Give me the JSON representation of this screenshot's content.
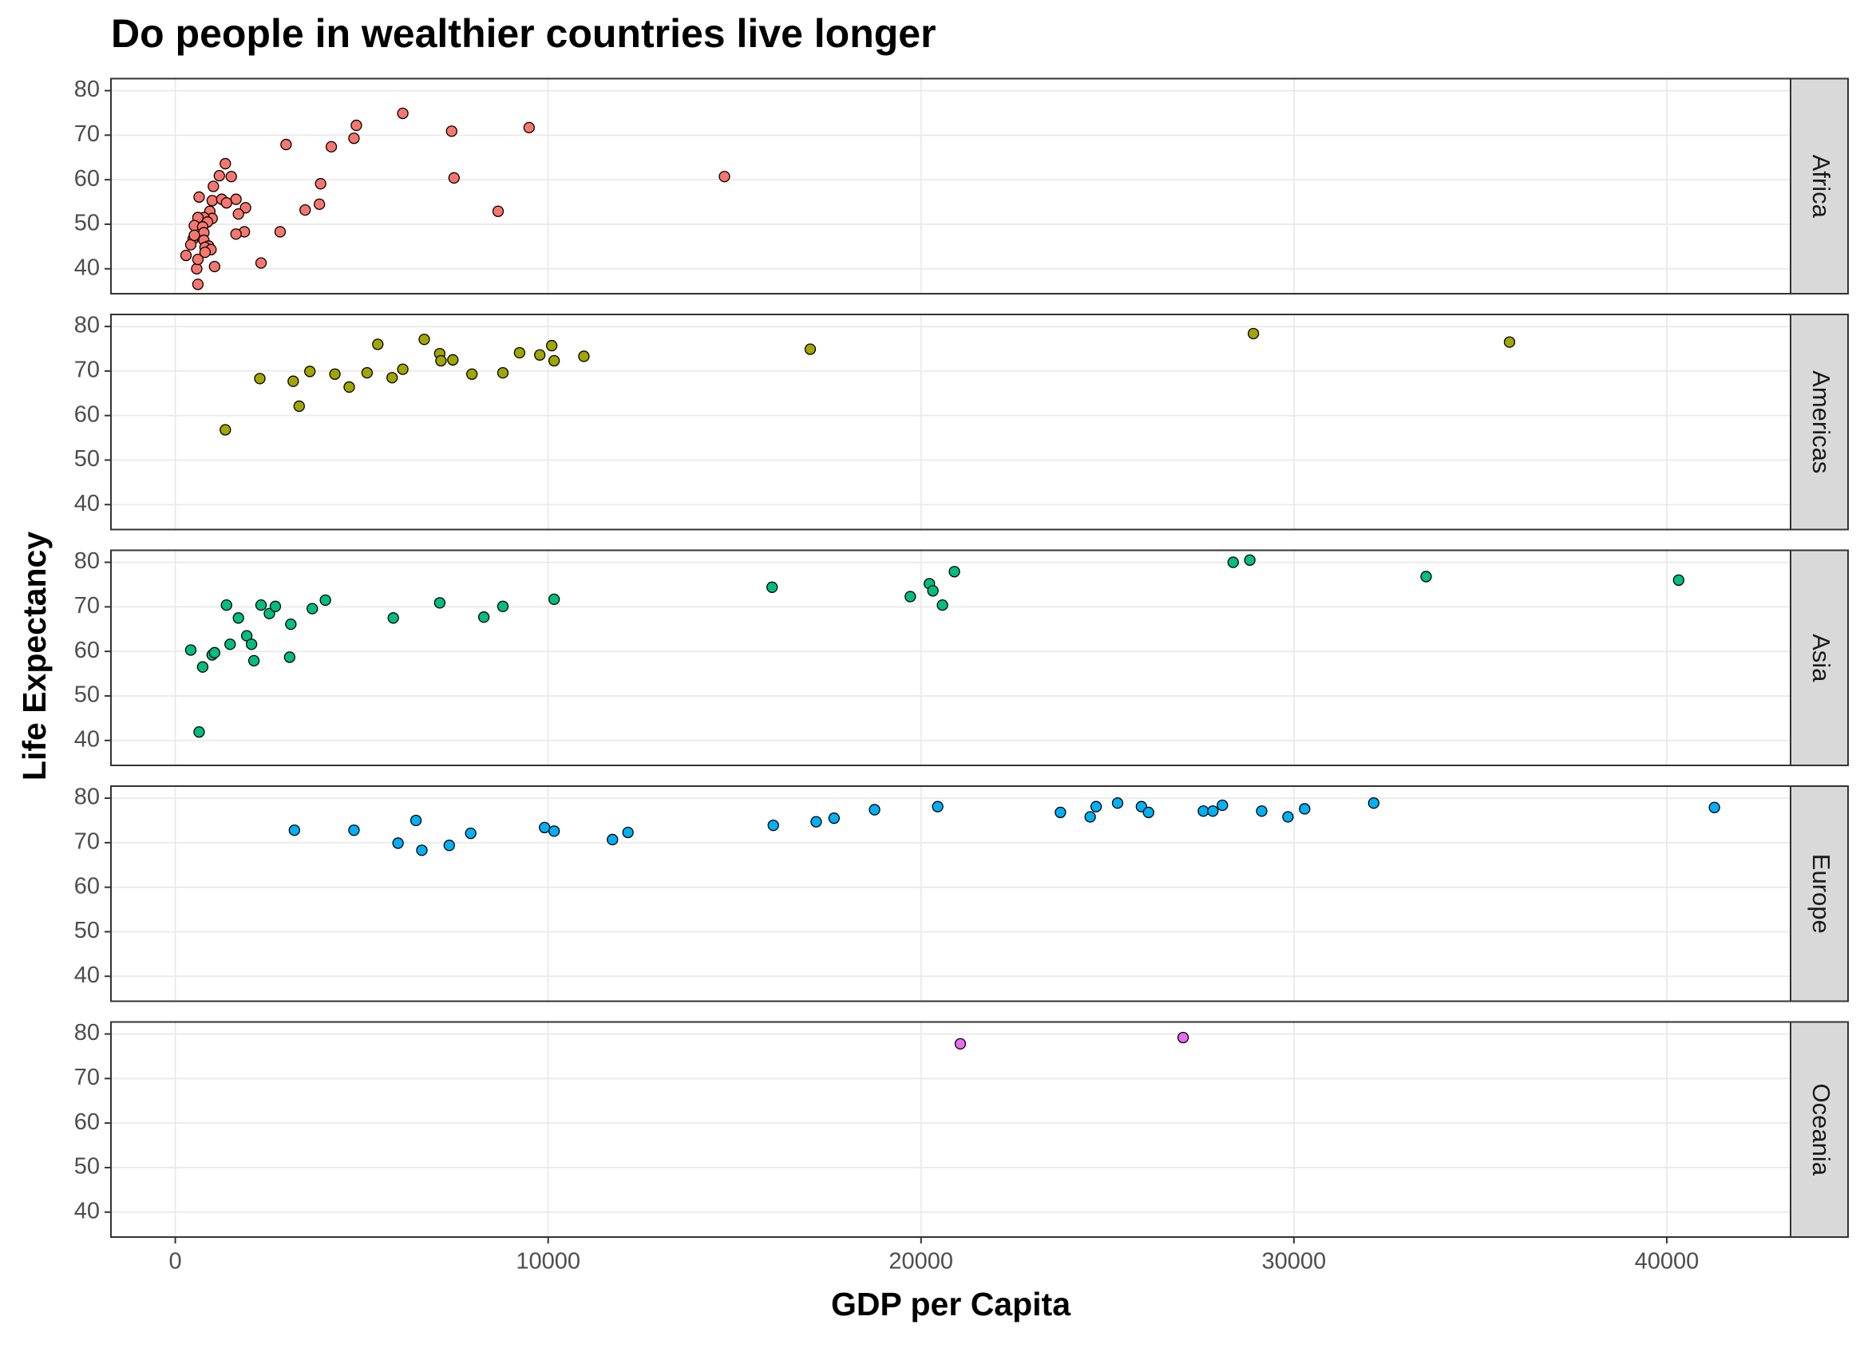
{
  "chart_data": {
    "type": "scatter",
    "title": "Do people in wealthier countries live longer",
    "xlabel": "GDP per Capita",
    "ylabel": "Life Expectancy",
    "xlim": [
      -1725,
      43320
    ],
    "xticks": [
      0,
      10000,
      20000,
      30000,
      40000
    ],
    "ylim": [
      34.4,
      82.7
    ],
    "yticks": [
      40,
      50,
      60,
      70,
      80
    ],
    "grid": true,
    "series": [
      {
        "name": "Africa",
        "color": "#F8766D",
        "x": [
          6102,
          4856,
          4792,
          9489,
          7412,
          2971,
          4185,
          7476,
          14728,
          3898,
          3866,
          3482,
          8658,
          2812,
          2300,
          1342,
          1182,
          1502,
          1022,
          990,
          1246,
          1629,
          639,
          1374,
          1885,
          1693,
          927,
          990,
          767,
          607,
          863,
          511,
          735,
          1853,
          1629,
          767,
          479,
          767,
          895,
          415,
          799,
          958,
          288,
          1054,
          575,
          607,
          607,
          799,
          511
        ],
        "values": [
          74.9,
          72.2,
          69.3,
          71.7,
          70.9,
          67.9,
          67.4,
          60.4,
          60.7,
          59.1,
          54.5,
          53.2,
          52.9,
          48.3,
          41.3,
          63.6,
          60.9,
          60.7,
          58.5,
          55.3,
          55.6,
          55.6,
          56.1,
          54.8,
          53.7,
          52.3,
          52.9,
          51.3,
          51.5,
          51.5,
          50.5,
          49.7,
          49.4,
          48.3,
          47.8,
          48.1,
          46.7,
          46.4,
          45.1,
          45.4,
          44.8,
          44.3,
          43.0,
          40.5,
          40.0,
          36.5,
          42.1,
          43.7,
          47.5
        ]
      },
      {
        "name": "Americas",
        "color": "#A3A500",
        "x": [
          1342,
          2268,
          3163,
          3323,
          3610,
          4281,
          4665,
          5144,
          5431,
          5815,
          6102,
          6677,
          7093,
          7125,
          7444,
          7955,
          8786,
          9233,
          9776,
          10096,
          10160,
          10958,
          17029,
          28914,
          35783
        ],
        "values": [
          56.8,
          68.3,
          67.7,
          62.1,
          69.9,
          69.3,
          66.4,
          69.6,
          76.0,
          68.5,
          70.4,
          77.1,
          73.9,
          72.3,
          72.5,
          69.3,
          69.6,
          74.1,
          73.6,
          75.7,
          72.3,
          73.3,
          74.9,
          78.4,
          76.5
        ]
      },
      {
        "name": "Asia",
        "color": "#00BF7D",
        "x": [
          415,
          735,
          990,
          1054,
          639,
          1374,
          1470,
          1693,
          1917,
          2045,
          2109,
          2300,
          2524,
          2684,
          3099,
          3067,
          3674,
          4026,
          5847,
          7093,
          8275,
          8786,
          10160,
          16006,
          19712,
          20224,
          20319,
          20575,
          20895,
          28371,
          28818,
          33546,
          40319
        ],
        "values": [
          60.3,
          56.5,
          59.2,
          59.7,
          41.9,
          70.4,
          61.6,
          67.5,
          63.5,
          61.6,
          57.9,
          70.4,
          68.5,
          70.1,
          66.1,
          58.7,
          69.6,
          71.5,
          67.5,
          70.9,
          67.7,
          70.1,
          71.7,
          74.4,
          72.3,
          75.2,
          73.6,
          70.4,
          77.9,
          80.0,
          80.5,
          76.8,
          76.0
        ]
      },
      {
        "name": "Europe",
        "color": "#00B0F6",
        "x": [
          3195,
          4792,
          5974,
          6454,
          6613,
          7348,
          7923,
          9904,
          10160,
          11725,
          12141,
          16038,
          17188,
          17668,
          18754,
          20447,
          23738,
          24537,
          24696,
          25272,
          25911,
          26102,
          27572,
          27827,
          28083,
          29137,
          29840,
          30288,
          32141,
          41278
        ],
        "values": [
          72.8,
          72.8,
          69.9,
          75.0,
          68.3,
          69.4,
          72.1,
          73.4,
          72.6,
          70.7,
          72.3,
          73.9,
          74.7,
          75.5,
          77.4,
          78.1,
          76.8,
          75.8,
          78.1,
          78.9,
          78.1,
          76.8,
          77.1,
          77.1,
          78.4,
          77.1,
          75.8,
          77.6,
          78.9,
          77.9
        ]
      },
      {
        "name": "Oceania",
        "color": "#E76BF3",
        "x": [
          21054,
          27029
        ],
        "values": [
          77.8,
          79.2
        ]
      }
    ]
  }
}
